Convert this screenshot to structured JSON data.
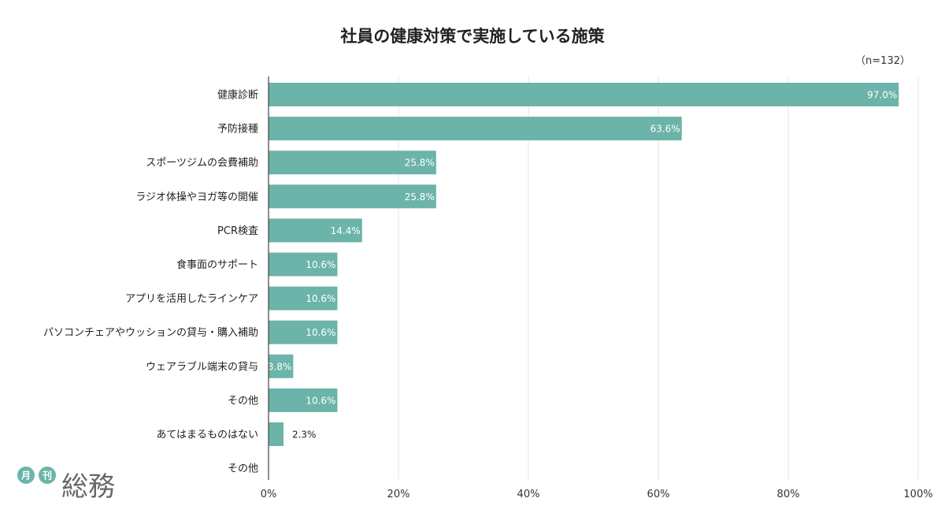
{
  "chart_data": {
    "type": "bar",
    "orientation": "horizontal",
    "title": "社員の健康対策で実施している施策",
    "note": "（n=132）",
    "categories": [
      "健康診断",
      "予防接種",
      "スポーツジムの会費補助",
      "ラジオ体操やヨガ等の開催",
      "PCR検査",
      "食事面のサポート",
      "アプリを活用したラインケア",
      "パソコンチェアやウッションの貸与・購入補助",
      "ウェアラブル端末の貸与",
      "その他",
      "あてはまるものはない",
      "その他"
    ],
    "values": [
      97.0,
      63.6,
      25.8,
      25.8,
      14.4,
      10.6,
      10.6,
      10.6,
      3.8,
      10.6,
      2.3,
      0
    ],
    "value_labels": [
      "97.0%",
      "63.6%",
      "25.8%",
      "25.8%",
      "14.4%",
      "10.6%",
      "10.6%",
      "10.6%",
      "3.8%",
      "10.6%",
      "2.3%",
      ""
    ],
    "xlim": [
      0,
      100
    ],
    "x_ticks": [
      0,
      20,
      40,
      60,
      80,
      100
    ],
    "x_tick_labels": [
      "0%",
      "20%",
      "40%",
      "60%",
      "80%",
      "100%"
    ],
    "grid": "vertical",
    "bar_color": "#6cb4a9",
    "label_color_inside": "#ffffff",
    "label_color_outside": "#222222"
  },
  "logo": {
    "badge1": "月",
    "badge2": "刊",
    "text": "総務",
    "color": "#6cb4a9"
  }
}
